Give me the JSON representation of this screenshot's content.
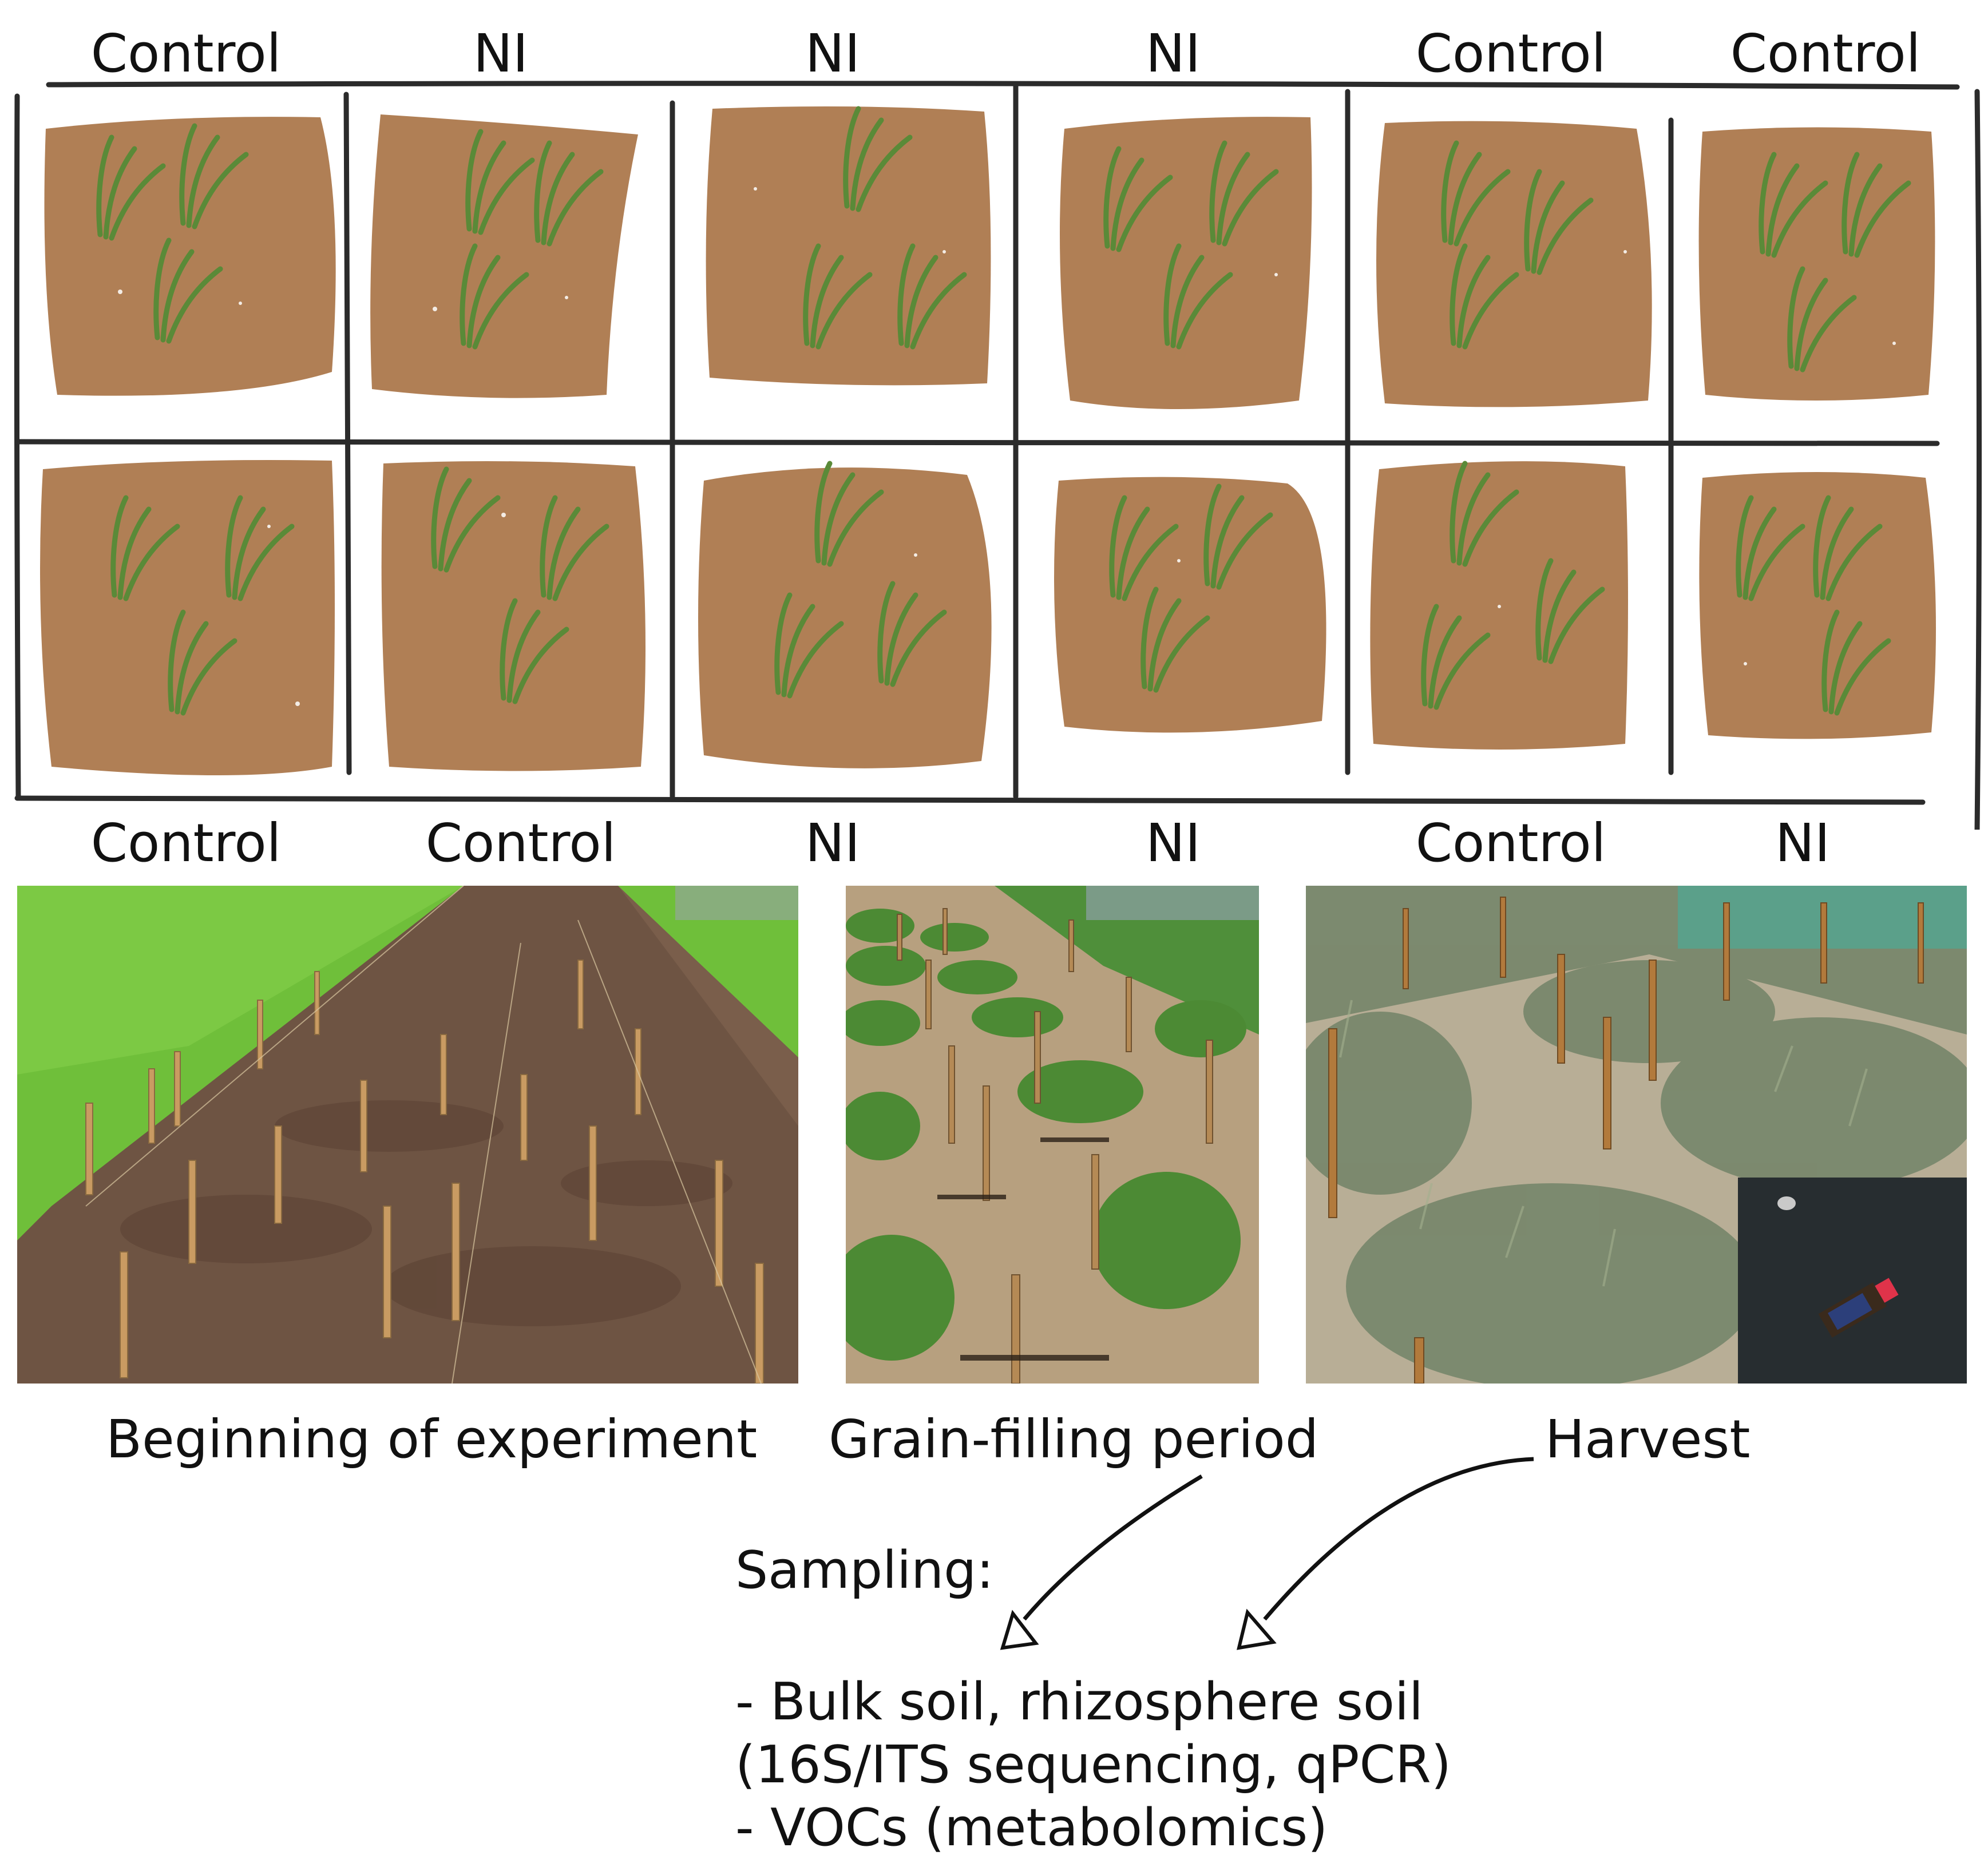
{
  "top_labels": [
    "Control",
    "NI",
    "NI",
    "NI",
    "Control",
    "Control"
  ],
  "bottom_labels": [
    "Control",
    "Control",
    "NI",
    "NI",
    "Control",
    "NI"
  ],
  "photos": [
    {
      "caption": "Beginning of experiment"
    },
    {
      "caption": "Grain-filling period"
    },
    {
      "caption": "Harvest"
    }
  ],
  "sampling": {
    "title": "Sampling:",
    "lines": [
      "- Bulk soil, rhizosphere soil",
      "(16S/ITS sequencing, qPCR)",
      "- VOCs (metabolomics)"
    ]
  },
  "colors": {
    "soil": "#b07f55",
    "plant": "#5a8a38",
    "grid_line": "#2b2b2b",
    "grass": "#6fbf3a",
    "dirt": "#6e5443"
  }
}
